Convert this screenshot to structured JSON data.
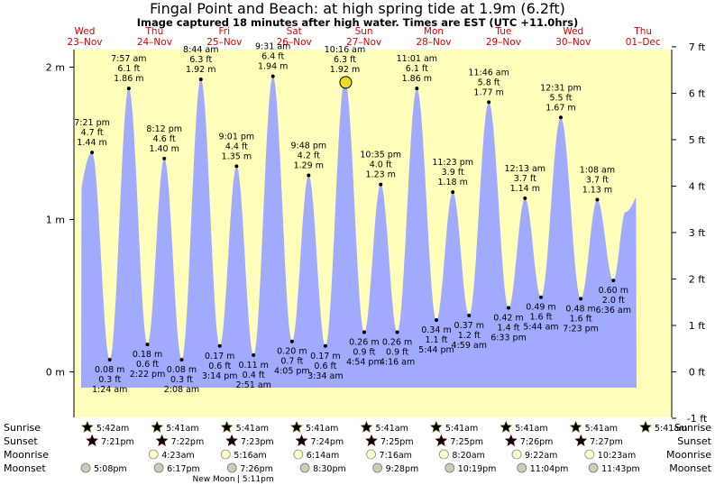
{
  "title": "Fingal Point and Beach: at high  spring tide at 1.9m (6.2ft)",
  "subtitle": "Image captured 18 minutes after high water. Times are EST (UTC +11.0hrs)",
  "colors": {
    "water": "#a0aaff",
    "day": "#ffffbb",
    "night": "#909090",
    "red_text": "#dd0000",
    "sun": "#ddcc44",
    "sunset": "#dd4433",
    "moon": "#ffffcc",
    "moonset": "#ccccbb",
    "current_marker": "#eedd22"
  },
  "chart_data": {
    "type": "area",
    "title": "Fingal Point and Beach: at high  spring tide at 1.9m (6.2ft)",
    "y_left_unit": "m",
    "y_right_unit": "ft",
    "y_left_ticks": [
      {
        "v": 0,
        "label": "0 m"
      },
      {
        "v": 1,
        "label": "1 m"
      },
      {
        "v": 2,
        "label": "2 m"
      }
    ],
    "y_right_ticks": [
      "-1 ft",
      "0 ft",
      "1 ft",
      "2 ft",
      "3 ft",
      "4 ft",
      "5 ft",
      "6 ft",
      "7 ft"
    ],
    "ylim_m": [
      -0.305,
      2.134
    ],
    "days": [
      {
        "weekday": "Wed",
        "date": "23–Nov",
        "rel": 0.1
      },
      {
        "weekday": "Thu",
        "date": "24–Nov",
        "rel": 1.1
      },
      {
        "weekday": "Fri",
        "date": "25–Nov",
        "rel": 2.1
      },
      {
        "weekday": "Sat",
        "date": "26–Nov",
        "rel": 3.1
      },
      {
        "weekday": "Sun",
        "date": "27–Nov",
        "rel": 4.1
      },
      {
        "weekday": "Mon",
        "date": "28–Nov",
        "rel": 5.1
      },
      {
        "weekday": "Tue",
        "date": "29–Nov",
        "rel": 6.1
      },
      {
        "weekday": "Wed",
        "date": "30–Nov",
        "rel": 7.1
      },
      {
        "weekday": "Thu",
        "date": "01–Dec",
        "rel": 8.1
      }
    ],
    "tides": [
      {
        "rel": -0.3,
        "h": 1.0,
        "hidden": true
      },
      {
        "rel": -0.15,
        "h": 0.5,
        "hidden": true
      },
      {
        "rel": 0.3049,
        "h": 1.44,
        "type": "high",
        "time": "7:21 pm",
        "ft": "4.7 ft",
        "m": "1.44 m"
      },
      {
        "rel": 0.5583,
        "h": 0.08,
        "type": "low",
        "time": "1:24 am",
        "ft": "0.3 ft",
        "m": "0.08 m"
      },
      {
        "rel": 0.8313,
        "h": 1.86,
        "type": "high",
        "time": "7:57 am",
        "ft": "6.1 ft",
        "m": "1.86 m"
      },
      {
        "rel": 1.0986,
        "h": 0.18,
        "type": "low",
        "time": "2:22 pm",
        "ft": "0.6 ft",
        "m": "0.18 m"
      },
      {
        "rel": 1.3396,
        "h": 1.4,
        "type": "high",
        "time": "8:12 pm",
        "ft": "4.6 ft",
        "m": "1.40 m"
      },
      {
        "rel": 1.5889,
        "h": 0.08,
        "type": "low",
        "time": "2:08 am",
        "ft": "0.3 ft",
        "m": "0.08 m"
      },
      {
        "rel": 1.8639,
        "h": 1.92,
        "type": "high",
        "time": "8:44 am",
        "ft": "6.3 ft",
        "m": "1.92 m"
      },
      {
        "rel": 2.1347,
        "h": 0.17,
        "type": "low",
        "time": "3:14 pm",
        "ft": "0.6 ft",
        "m": "0.17 m"
      },
      {
        "rel": 2.3757,
        "h": 1.35,
        "type": "high",
        "time": "9:01 pm",
        "ft": "4.4 ft",
        "m": "1.35 m"
      },
      {
        "rel": 2.6188,
        "h": 0.11,
        "type": "low",
        "time": "2:51 am",
        "ft": "0.4 ft",
        "m": "0.11 m"
      },
      {
        "rel": 2.8965,
        "h": 1.94,
        "type": "high",
        "time": "9:31 am",
        "ft": "6.4 ft",
        "m": "1.94 m"
      },
      {
        "rel": 3.1701,
        "h": 0.2,
        "type": "low",
        "time": "4:05 pm",
        "ft": "0.7 ft",
        "m": "0.20 m"
      },
      {
        "rel": 3.4083,
        "h": 1.29,
        "type": "high",
        "time": "9:48 pm",
        "ft": "4.2 ft",
        "m": "1.29 m"
      },
      {
        "rel": 3.6486,
        "h": 0.17,
        "type": "low",
        "time": "3:34 am",
        "ft": "0.6 ft",
        "m": "0.17 m"
      },
      {
        "rel": 3.9278,
        "h": 1.92,
        "type": "high",
        "time": "10:16 am",
        "ft": "6.3 ft",
        "m": "1.92 m"
      },
      {
        "rel": 4.2042,
        "h": 0.26,
        "type": "low",
        "time": "4:54 pm",
        "ft": "0.9 ft",
        "m": "0.26 m"
      },
      {
        "rel": 4.441,
        "h": 1.23,
        "type": "high",
        "time": "10:35 pm",
        "ft": "4.0 ft",
        "m": "1.23 m"
      },
      {
        "rel": 4.6778,
        "h": 0.26,
        "type": "low",
        "time": "4:16 am",
        "ft": "0.9 ft",
        "m": "0.26 m"
      },
      {
        "rel": 4.959,
        "h": 1.86,
        "type": "high",
        "time": "11:01 am",
        "ft": "6.1 ft",
        "m": "1.86 m"
      },
      {
        "rel": 5.2389,
        "h": 0.34,
        "type": "low",
        "time": "5:44 pm",
        "ft": "1.1 ft",
        "m": "0.34 m"
      },
      {
        "rel": 5.4736,
        "h": 1.18,
        "type": "high",
        "time": "11:23 pm",
        "ft": "3.9 ft",
        "m": "1.18 m"
      },
      {
        "rel": 5.7076,
        "h": 0.37,
        "type": "low",
        "time": "4:59 am",
        "ft": "1.2 ft",
        "m": "0.37 m"
      },
      {
        "rel": 5.9903,
        "h": 1.77,
        "type": "high",
        "time": "11:46 am",
        "ft": "5.8 ft",
        "m": "1.77 m"
      },
      {
        "rel": 6.2729,
        "h": 0.42,
        "type": "low",
        "time": "6:33 pm",
        "ft": "1.4 ft",
        "m": "0.42 m"
      },
      {
        "rel": 6.509,
        "h": 1.14,
        "type": "high",
        "time": "12:13 am",
        "ft": "3.7 ft",
        "m": "1.14 m"
      },
      {
        "rel": 6.7375,
        "h": 0.49,
        "type": "low",
        "time": "5:44 am",
        "ft": "1.6 ft",
        "m": "0.49 m"
      },
      {
        "rel": 7.0215,
        "h": 1.67,
        "type": "high",
        "time": "12:31 pm",
        "ft": "5.5 ft",
        "m": "1.67 m"
      },
      {
        "rel": 7.3076,
        "h": 0.48,
        "type": "low",
        "time": "7:23 pm",
        "ft": "1.6 ft",
        "m": "0.48 m"
      },
      {
        "rel": 7.5444,
        "h": 1.13,
        "type": "high",
        "time": "1:08 am",
        "ft": "3.7 ft",
        "m": "1.13 m"
      },
      {
        "rel": 7.775,
        "h": 0.6,
        "type": "low",
        "time": "6:36 am",
        "ft": "2.0 ft",
        "m": "0.60 m"
      },
      {
        "rel": 7.95,
        "h": 1.05,
        "hidden": true
      },
      {
        "rel": 8.2,
        "h": 1.2,
        "hidden": true
      }
    ],
    "current": {
      "rel": 3.94,
      "h": 1.9
    },
    "suntimes": [
      {
        "rise": "5:42am",
        "set": "7:21pm",
        "rise_rel": -0.7625,
        "set_rel": 0.3056
      },
      {
        "rise": "5:41am",
        "set": "7:22pm",
        "rise_rel": 0.2368,
        "set_rel": 1.3063
      },
      {
        "rise": "5:41am",
        "set": "7:23pm",
        "rise_rel": 1.2368,
        "set_rel": 2.3069
      },
      {
        "rise": "5:41am",
        "set": "7:24pm",
        "rise_rel": 2.2368,
        "set_rel": 3.3076
      },
      {
        "rise": "5:41am",
        "set": "7:25pm",
        "rise_rel": 3.2368,
        "set_rel": 4.3083
      },
      {
        "rise": "5:41am",
        "set": "7:25pm",
        "rise_rel": 4.2368,
        "set_rel": 5.3083
      },
      {
        "rise": "5:41am",
        "set": "7:26pm",
        "rise_rel": 5.2368,
        "set_rel": 6.309
      },
      {
        "rise": "5:41am",
        "set": "7:27pm",
        "rise_rel": 6.2368,
        "set_rel": 7.3097
      },
      {
        "rise": "5:41am",
        "set": "",
        "rise_rel": 7.2368,
        "set_rel": 8.3097
      }
    ],
    "sunrise_icons": [
      {
        "rel": 0.2375,
        "label": "5:42am"
      },
      {
        "rel": 1.2368,
        "label": "5:41am"
      },
      {
        "rel": 2.2368,
        "label": "5:41am"
      },
      {
        "rel": 3.2368,
        "label": "5:41am"
      },
      {
        "rel": 4.2368,
        "label": "5:41am"
      },
      {
        "rel": 5.2368,
        "label": "5:41am"
      },
      {
        "rel": 6.2368,
        "label": "5:41am"
      },
      {
        "rel": 7.2368,
        "label": "5:41am"
      },
      {
        "rel": 8.2368,
        "label": "5:41am"
      }
    ],
    "sunset_icons": [
      {
        "rel": 0.3056,
        "label": "7:21pm"
      },
      {
        "rel": 1.3063,
        "label": "7:22pm"
      },
      {
        "rel": 2.3069,
        "label": "7:23pm"
      },
      {
        "rel": 3.3076,
        "label": "7:24pm"
      },
      {
        "rel": 4.3083,
        "label": "7:25pm"
      },
      {
        "rel": 5.3083,
        "label": "7:25pm"
      },
      {
        "rel": 6.309,
        "label": "7:26pm"
      },
      {
        "rel": 7.3097,
        "label": "7:27pm"
      }
    ],
    "moonrise_icons": [
      {
        "rel": 1.1854,
        "label": "4:23am"
      },
      {
        "rel": 2.2194,
        "label": "5:16am"
      },
      {
        "rel": 3.2597,
        "label": "6:14am"
      },
      {
        "rel": 4.3028,
        "label": "7:16am"
      },
      {
        "rel": 5.3472,
        "label": "8:20am"
      },
      {
        "rel": 6.3889,
        "label": "9:22am"
      },
      {
        "rel": 7.4326,
        "label": "10:23am"
      }
    ],
    "moonset_icons": [
      {
        "rel": 0.2139,
        "label": "5:08pm"
      },
      {
        "rel": 1.2618,
        "label": "6:17pm"
      },
      {
        "rel": 2.3097,
        "label": "7:26pm"
      },
      {
        "rel": 3.3542,
        "label": "8:30pm"
      },
      {
        "rel": 4.3944,
        "label": "9:28pm"
      },
      {
        "rel": 5.4299,
        "label": "10:19pm"
      },
      {
        "rel": 6.4632,
        "label": "11:04pm"
      },
      {
        "rel": 7.4882,
        "label": "11:43pm"
      }
    ],
    "row_labels": [
      "Sunrise",
      "Sunset",
      "Moonrise",
      "Moonset"
    ],
    "new_moon": {
      "label": "New Moon",
      "time": "5:11pm"
    }
  }
}
